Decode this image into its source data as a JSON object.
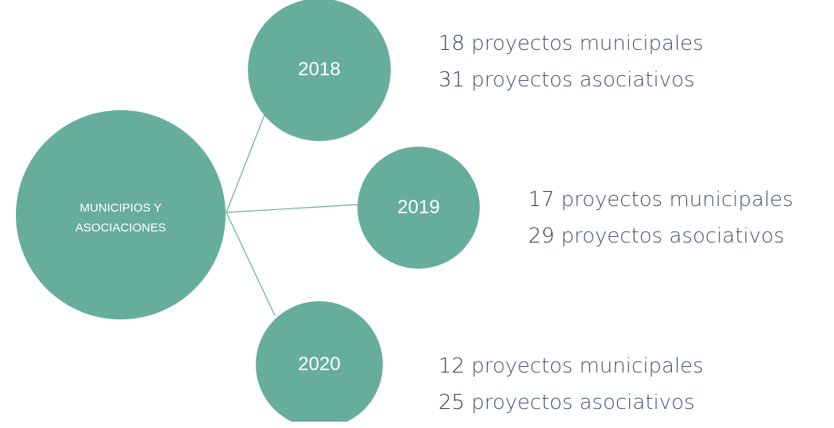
{
  "center": {
    "label": "MUNICIPIOS Y ASOCIACIONES"
  },
  "years": [
    {
      "year": "2018",
      "lines": [
        {
          "count": 18,
          "text": "proyectos municipales"
        },
        {
          "count": 31,
          "text": "proyectos asociativos"
        }
      ]
    },
    {
      "year": "2019",
      "lines": [
        {
          "count": 17,
          "text": "proyectos municipales"
        },
        {
          "count": 29,
          "text": "proyectos asociativos"
        }
      ]
    },
    {
      "year": "2020",
      "lines": [
        {
          "count": 12,
          "text": "proyectos municipales"
        },
        {
          "count": 25,
          "text": "proyectos asociativos"
        }
      ]
    }
  ]
}
